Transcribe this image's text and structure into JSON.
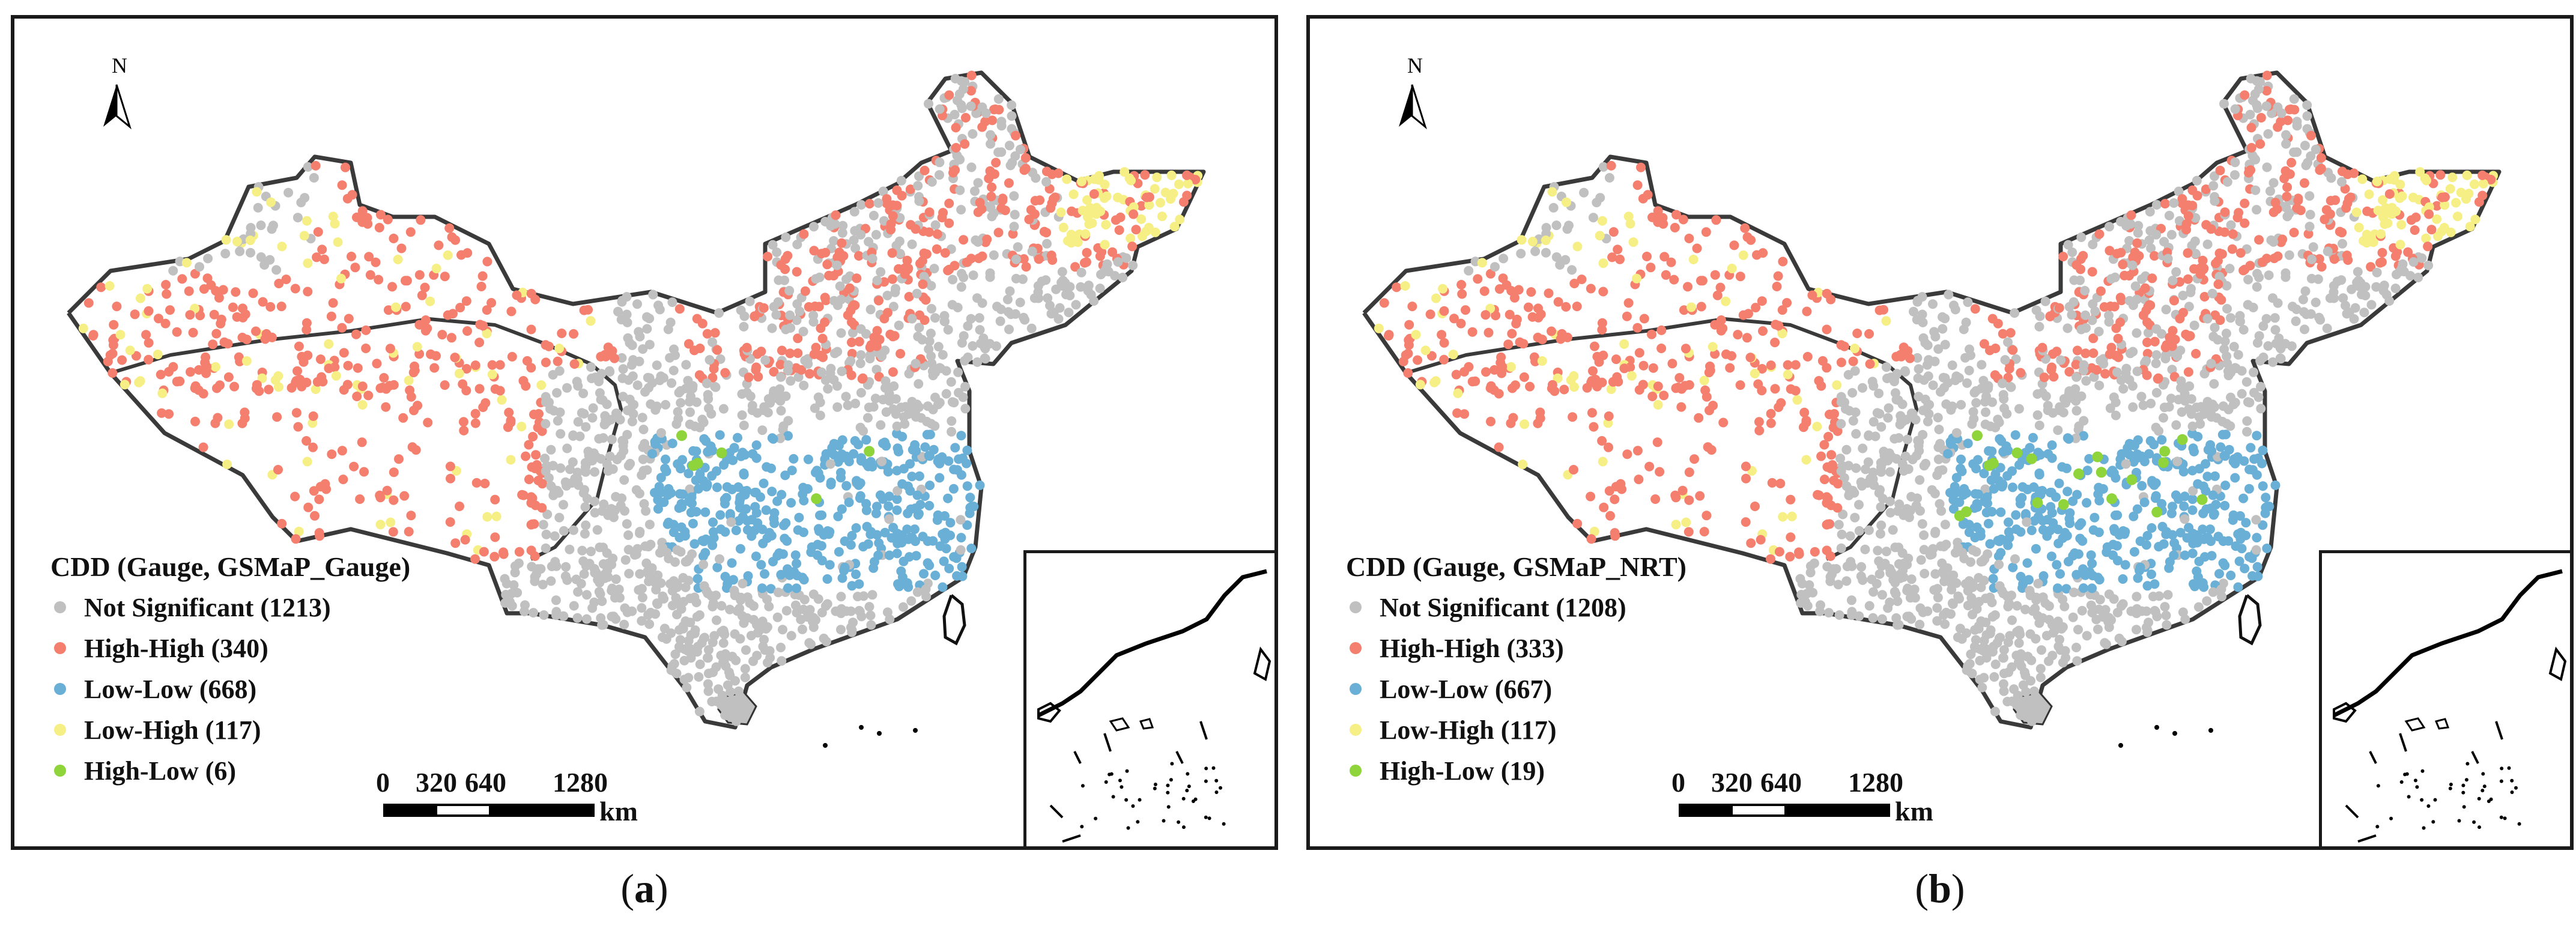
{
  "panels": [
    {
      "id": "a",
      "caption_open": "(",
      "caption_letter": "a",
      "caption_close": ")",
      "legend_title": "CDD (Gauge, GSMaP_Gauge)",
      "legend": [
        {
          "class": "Not Significant",
          "count": 1213,
          "label": "Not Significant (1213)",
          "color": "#c0c0c0"
        },
        {
          "class": "High-High",
          "count": 340,
          "label": "High-High (340)",
          "color": "#f47f6e"
        },
        {
          "class": "Low-Low",
          "count": 668,
          "label": "Low-Low (668)",
          "color": "#6aafd6"
        },
        {
          "class": "Low-High",
          "count": 117,
          "label": "Low-High (117)",
          "color": "#f5ef85"
        },
        {
          "class": "High-Low",
          "count": 6,
          "label": "High-Low (6)",
          "color": "#8ed43a"
        }
      ]
    },
    {
      "id": "b",
      "caption_open": "(",
      "caption_letter": "b",
      "caption_close": ")",
      "legend_title": "CDD (Gauge, GSMaP_NRT)",
      "legend": [
        {
          "class": "Not Significant",
          "count": 1208,
          "label": "Not Significant (1208)",
          "color": "#c0c0c0"
        },
        {
          "class": "High-High",
          "count": 333,
          "label": "High-High (333)",
          "color": "#f47f6e"
        },
        {
          "class": "Low-Low",
          "count": 667,
          "label": "Low-Low (667)",
          "color": "#6aafd6"
        },
        {
          "class": "Low-High",
          "count": 117,
          "label": "Low-High (117)",
          "color": "#f5ef85"
        },
        {
          "class": "High-Low",
          "count": 19,
          "label": "High-Low (19)",
          "color": "#8ed43a"
        }
      ]
    }
  ],
  "scale": {
    "ticks": [
      "0",
      "320",
      "640",
      "1280"
    ],
    "unit": "km"
  },
  "north_arrow": {
    "label": "N",
    "icon": "north-arrow-icon"
  }
}
